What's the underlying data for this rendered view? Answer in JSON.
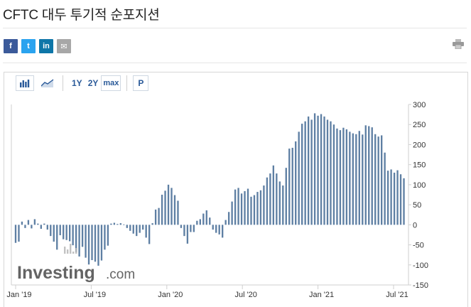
{
  "title": "CFTC 대두 투기적 순포지션",
  "share": {
    "facebook": "f",
    "twitter": "t",
    "linkedin": "in",
    "email": "✉"
  },
  "toolbar": {
    "ranges": [
      "1Y",
      "2Y",
      "max"
    ],
    "p_label": "P"
  },
  "watermark": {
    "brand": "Investing",
    "suffix": ".com"
  },
  "colors": {
    "bar": "#5e7fa3",
    "axis": "#cfcfcf",
    "text": "#333333",
    "brand_red": "#d4121c"
  },
  "chart_data": {
    "type": "bar",
    "title": "",
    "xlabel": "",
    "ylabel": "",
    "ylim": [
      -150,
      300
    ],
    "yticks": [
      300,
      250,
      200,
      150,
      100,
      50,
      0,
      -50,
      -100,
      -150
    ],
    "xtick_labels": [
      "Jan '19",
      "Jul '19",
      "Jan '20",
      "Jul '20",
      "Jan '21",
      "Jul '21"
    ],
    "grid": false,
    "values": [
      -45,
      -42,
      8,
      -8,
      12,
      -9,
      14,
      3,
      -10,
      3,
      -12,
      -28,
      -42,
      -62,
      -26,
      -36,
      -38,
      -41,
      -51,
      -68,
      -79,
      -55,
      -82,
      -99,
      -88,
      -92,
      -102,
      -89,
      -62,
      -52,
      3,
      5,
      2,
      4,
      1,
      -8,
      -15,
      -22,
      -28,
      -20,
      -12,
      -32,
      -48,
      4,
      38,
      42,
      75,
      85,
      100,
      92,
      74,
      60,
      -8,
      -28,
      -47,
      -18,
      -18,
      10,
      14,
      28,
      36,
      18,
      -12,
      -20,
      -24,
      -32,
      12,
      32,
      58,
      88,
      92,
      78,
      84,
      90,
      70,
      74,
      82,
      86,
      98,
      118,
      128,
      148,
      128,
      108,
      98,
      142,
      190,
      192,
      208,
      232,
      252,
      258,
      270,
      262,
      278,
      272,
      276,
      270,
      262,
      258,
      250,
      240,
      236,
      242,
      238,
      232,
      228,
      226,
      234,
      225,
      248,
      246,
      243,
      226,
      220,
      223,
      180,
      135,
      138,
      130,
      136,
      126,
      116
    ]
  }
}
